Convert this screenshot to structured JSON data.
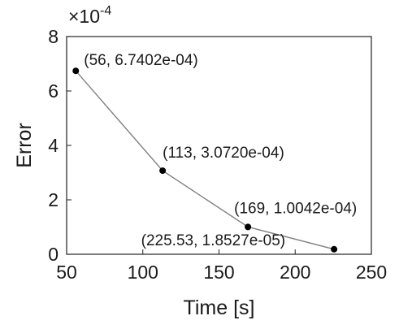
{
  "chart_data": {
    "type": "line",
    "xlabel": "Time [s]",
    "ylabel": "Error",
    "xlim": [
      50,
      250
    ],
    "ylim": [
      0,
      8
    ],
    "xticks": [
      50,
      100,
      150,
      200,
      250
    ],
    "yticks": [
      0,
      2,
      4,
      6,
      8
    ],
    "y_multiplier": {
      "base": "×10",
      "exponent": "-4"
    },
    "grid": false,
    "series": [
      {
        "x": [
          56,
          113,
          169,
          225.53
        ],
        "y": [
          6.7402,
          3.072,
          1.0042,
          0.18527
        ],
        "color": "#808080",
        "marker_color": "#000000"
      }
    ],
    "annotations": [
      "(56, 6.7402e-04)",
      "(113, 3.0720e-04)",
      "(169, 1.0042e-04)",
      "(225.53, 1.8527e-05)"
    ]
  }
}
